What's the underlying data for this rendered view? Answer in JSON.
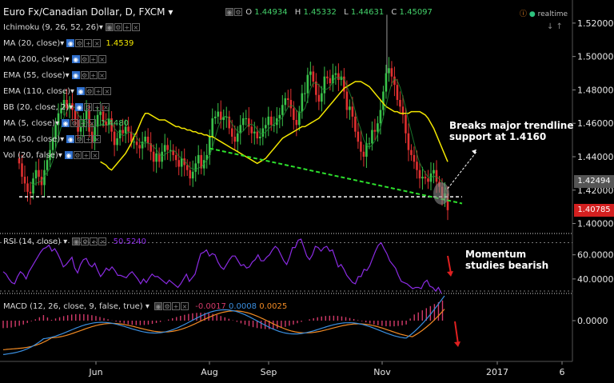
{
  "header": {
    "title": "Euro Fx/Canadian Dollar, D, FXCM",
    "ohlc": [
      {
        "label": "O",
        "value": "1.44934"
      },
      {
        "label": "H",
        "value": "1.45332"
      },
      {
        "label": "L",
        "value": "1.44631"
      },
      {
        "label": "C",
        "value": "1.45097"
      }
    ],
    "realtime": "realtime"
  },
  "indicators": [
    {
      "label": "Ichimoku (9, 26, 52, 26)",
      "value": ""
    },
    {
      "label": "MA (20, close)",
      "value": "1.4539",
      "value_color": "#f2e600"
    },
    {
      "label": "MA (200, close)",
      "value": ""
    },
    {
      "label": "EMA (55, close)",
      "value": ""
    },
    {
      "label": "EMA (110, close)",
      "value": ""
    },
    {
      "label": "BB (20, close, 2)",
      "value": ""
    },
    {
      "label": "MA (5, close)",
      "value": "1.4480",
      "value_color": "#44d36b"
    },
    {
      "label": "MA (50, close)",
      "value": ""
    },
    {
      "label": "Vol (20, false)",
      "value": ""
    }
  ],
  "rsi_panel": {
    "label": "RSI (14, close)",
    "value": "50.5240"
  },
  "macd_panel": {
    "label": "MACD (12, 26, close, 9, false, true)",
    "values": [
      "-0.0017",
      "0.0008",
      "0.0025"
    ]
  },
  "price_tags": {
    "current": "1.42494",
    "last": "1.40785"
  },
  "annotations": {
    "trendline": [
      "Breaks major trendline",
      "support at 1.4160"
    ],
    "momentum": [
      "Momentum",
      "studies bearish"
    ]
  },
  "colors": {
    "background": "#000000",
    "bull": "#39c24a",
    "bear": "#e03030",
    "ma20": "#f2e600",
    "trendline": "#2de02d",
    "rsi": "#8a2be2",
    "macd": "#3a8fe0",
    "signal": "#f08a24",
    "hist": "#d33a6a"
  },
  "chart_data": {
    "type": "line",
    "x_axis_labels": [
      "Jun",
      "Aug",
      "Sep",
      "Nov",
      "2017",
      "6"
    ],
    "price": {
      "ylim": [
        1.395,
        1.53
      ],
      "ticks": [
        "1.52000",
        "1.50000",
        "1.48000",
        "1.46000",
        "1.44000",
        "1.42000",
        "1.40000"
      ],
      "support_level": 1.416,
      "close": [
        1.436,
        1.428,
        1.424,
        1.419,
        1.418,
        1.427,
        1.432,
        1.428,
        1.423,
        1.432,
        1.438,
        1.444,
        1.451,
        1.459,
        1.466,
        1.469,
        1.474,
        1.469,
        1.472,
        1.468,
        1.462,
        1.455,
        1.458,
        1.462,
        1.468,
        1.455,
        1.449,
        1.458,
        1.465,
        1.467,
        1.461,
        1.459,
        1.463,
        1.455,
        1.447,
        1.451,
        1.456,
        1.454,
        1.458,
        1.455,
        1.449,
        1.449,
        1.447,
        1.445,
        1.449,
        1.452,
        1.448,
        1.443,
        1.437,
        1.442,
        1.437,
        1.443,
        1.447,
        1.444,
        1.444,
        1.441,
        1.438,
        1.434,
        1.439,
        1.435,
        1.432,
        1.427,
        1.431,
        1.436,
        1.441,
        1.433,
        1.438,
        1.441,
        1.452,
        1.463,
        1.464,
        1.467,
        1.462,
        1.464,
        1.464,
        1.457,
        1.452,
        1.449,
        1.454,
        1.459,
        1.463,
        1.463,
        1.458,
        1.454,
        1.455,
        1.451,
        1.452,
        1.457,
        1.459,
        1.464,
        1.459,
        1.459,
        1.463,
        1.465,
        1.471,
        1.475,
        1.474,
        1.469,
        1.462,
        1.459,
        1.467,
        1.478,
        1.478,
        1.489,
        1.491,
        1.485,
        1.477,
        1.473,
        1.478,
        1.488,
        1.487,
        1.484,
        1.489,
        1.49,
        1.486,
        1.488,
        1.479,
        1.468,
        1.47,
        1.464,
        1.455,
        1.449,
        1.443,
        1.44,
        1.448,
        1.448,
        1.456,
        1.455,
        1.46,
        1.468,
        1.479,
        1.49,
        1.493,
        1.488,
        1.483,
        1.474,
        1.47,
        1.465,
        1.454,
        1.444,
        1.441,
        1.437,
        1.432,
        1.427,
        1.428,
        1.427,
        1.425,
        1.43,
        1.432,
        1.425,
        1.422,
        1.415,
        1.418,
        1.408
      ],
      "ma20": [
        1.437,
        1.436,
        1.435,
        1.433,
        1.432,
        1.434,
        1.436,
        1.438,
        1.44,
        1.442,
        1.445,
        1.448,
        1.452,
        1.455,
        1.459,
        1.463,
        1.466,
        1.466,
        1.465,
        1.464,
        1.463,
        1.462,
        1.462,
        1.462,
        1.461,
        1.46,
        1.459,
        1.458,
        1.458,
        1.457,
        1.457,
        1.456,
        1.456,
        1.455,
        1.455,
        1.454,
        1.454,
        1.453,
        1.453,
        1.452,
        1.452,
        1.451,
        1.45,
        1.449,
        1.448,
        1.447,
        1.446,
        1.445,
        1.444,
        1.443,
        1.442,
        1.441,
        1.44,
        1.439,
        1.438,
        1.437,
        1.436,
        1.437,
        1.438,
        1.439,
        1.441,
        1.443,
        1.445,
        1.447,
        1.449,
        1.451,
        1.452,
        1.453,
        1.454,
        1.455,
        1.456,
        1.457,
        1.458,
        1.458,
        1.459,
        1.46,
        1.461,
        1.462,
        1.463,
        1.465,
        1.467,
        1.469,
        1.471,
        1.473,
        1.475,
        1.477,
        1.479,
        1.481,
        1.482,
        1.483,
        1.484,
        1.485,
        1.485,
        1.485,
        1.484,
        1.483,
        1.482,
        1.48,
        1.478,
        1.476,
        1.474,
        1.472,
        1.47,
        1.469,
        1.468,
        1.467,
        1.467,
        1.466,
        1.466,
        1.466,
        1.466,
        1.467,
        1.467,
        1.467,
        1.467,
        1.466,
        1.465,
        1.463,
        1.46,
        1.457,
        1.453,
        1.449,
        1.445,
        1.441,
        1.437
      ]
    },
    "trendline": {
      "from": {
        "index": 68,
        "value": 1.445
      },
      "to": {
        "index": 155,
        "value": 1.412
      }
    },
    "rsi": {
      "ylim": [
        30,
        75
      ],
      "ticks": [
        "60.0000",
        "40.0000"
      ],
      "values": [
        46,
        44,
        40,
        37,
        36,
        42,
        46,
        44,
        40,
        46,
        50,
        54,
        58,
        62,
        65,
        66,
        68,
        63,
        65,
        61,
        56,
        50,
        52,
        55,
        58,
        49,
        45,
        52,
        56,
        57,
        52,
        50,
        53,
        47,
        42,
        45,
        49,
        47,
        50,
        47,
        43,
        43,
        42,
        41,
        44,
        46,
        43,
        40,
        36,
        40,
        37,
        41,
        44,
        42,
        42,
        40,
        38,
        36,
        39,
        37,
        35,
        33,
        36,
        40,
        44,
        38,
        41,
        44,
        53,
        61,
        62,
        64,
        59,
        61,
        60,
        54,
        50,
        48,
        52,
        56,
        59,
        59,
        55,
        51,
        52,
        49,
        50,
        54,
        56,
        60,
        55,
        55,
        58,
        60,
        64,
        67,
        65,
        60,
        55,
        52,
        58,
        66,
        66,
        72,
        73,
        66,
        59,
        56,
        60,
        67,
        66,
        63,
        66,
        67,
        63,
        64,
        57,
        50,
        52,
        48,
        43,
        40,
        37,
        36,
        42,
        42,
        48,
        47,
        51,
        57,
        63,
        68,
        70,
        65,
        61,
        55,
        52,
        49,
        43,
        38,
        37,
        36,
        34,
        32,
        33,
        33,
        32,
        37,
        39,
        34,
        33,
        30,
        33,
        28
      ]
    },
    "macd": {
      "ticks": [
        "0.0000"
      ],
      "note": "MACD line, signal line and histogram bars"
    }
  }
}
